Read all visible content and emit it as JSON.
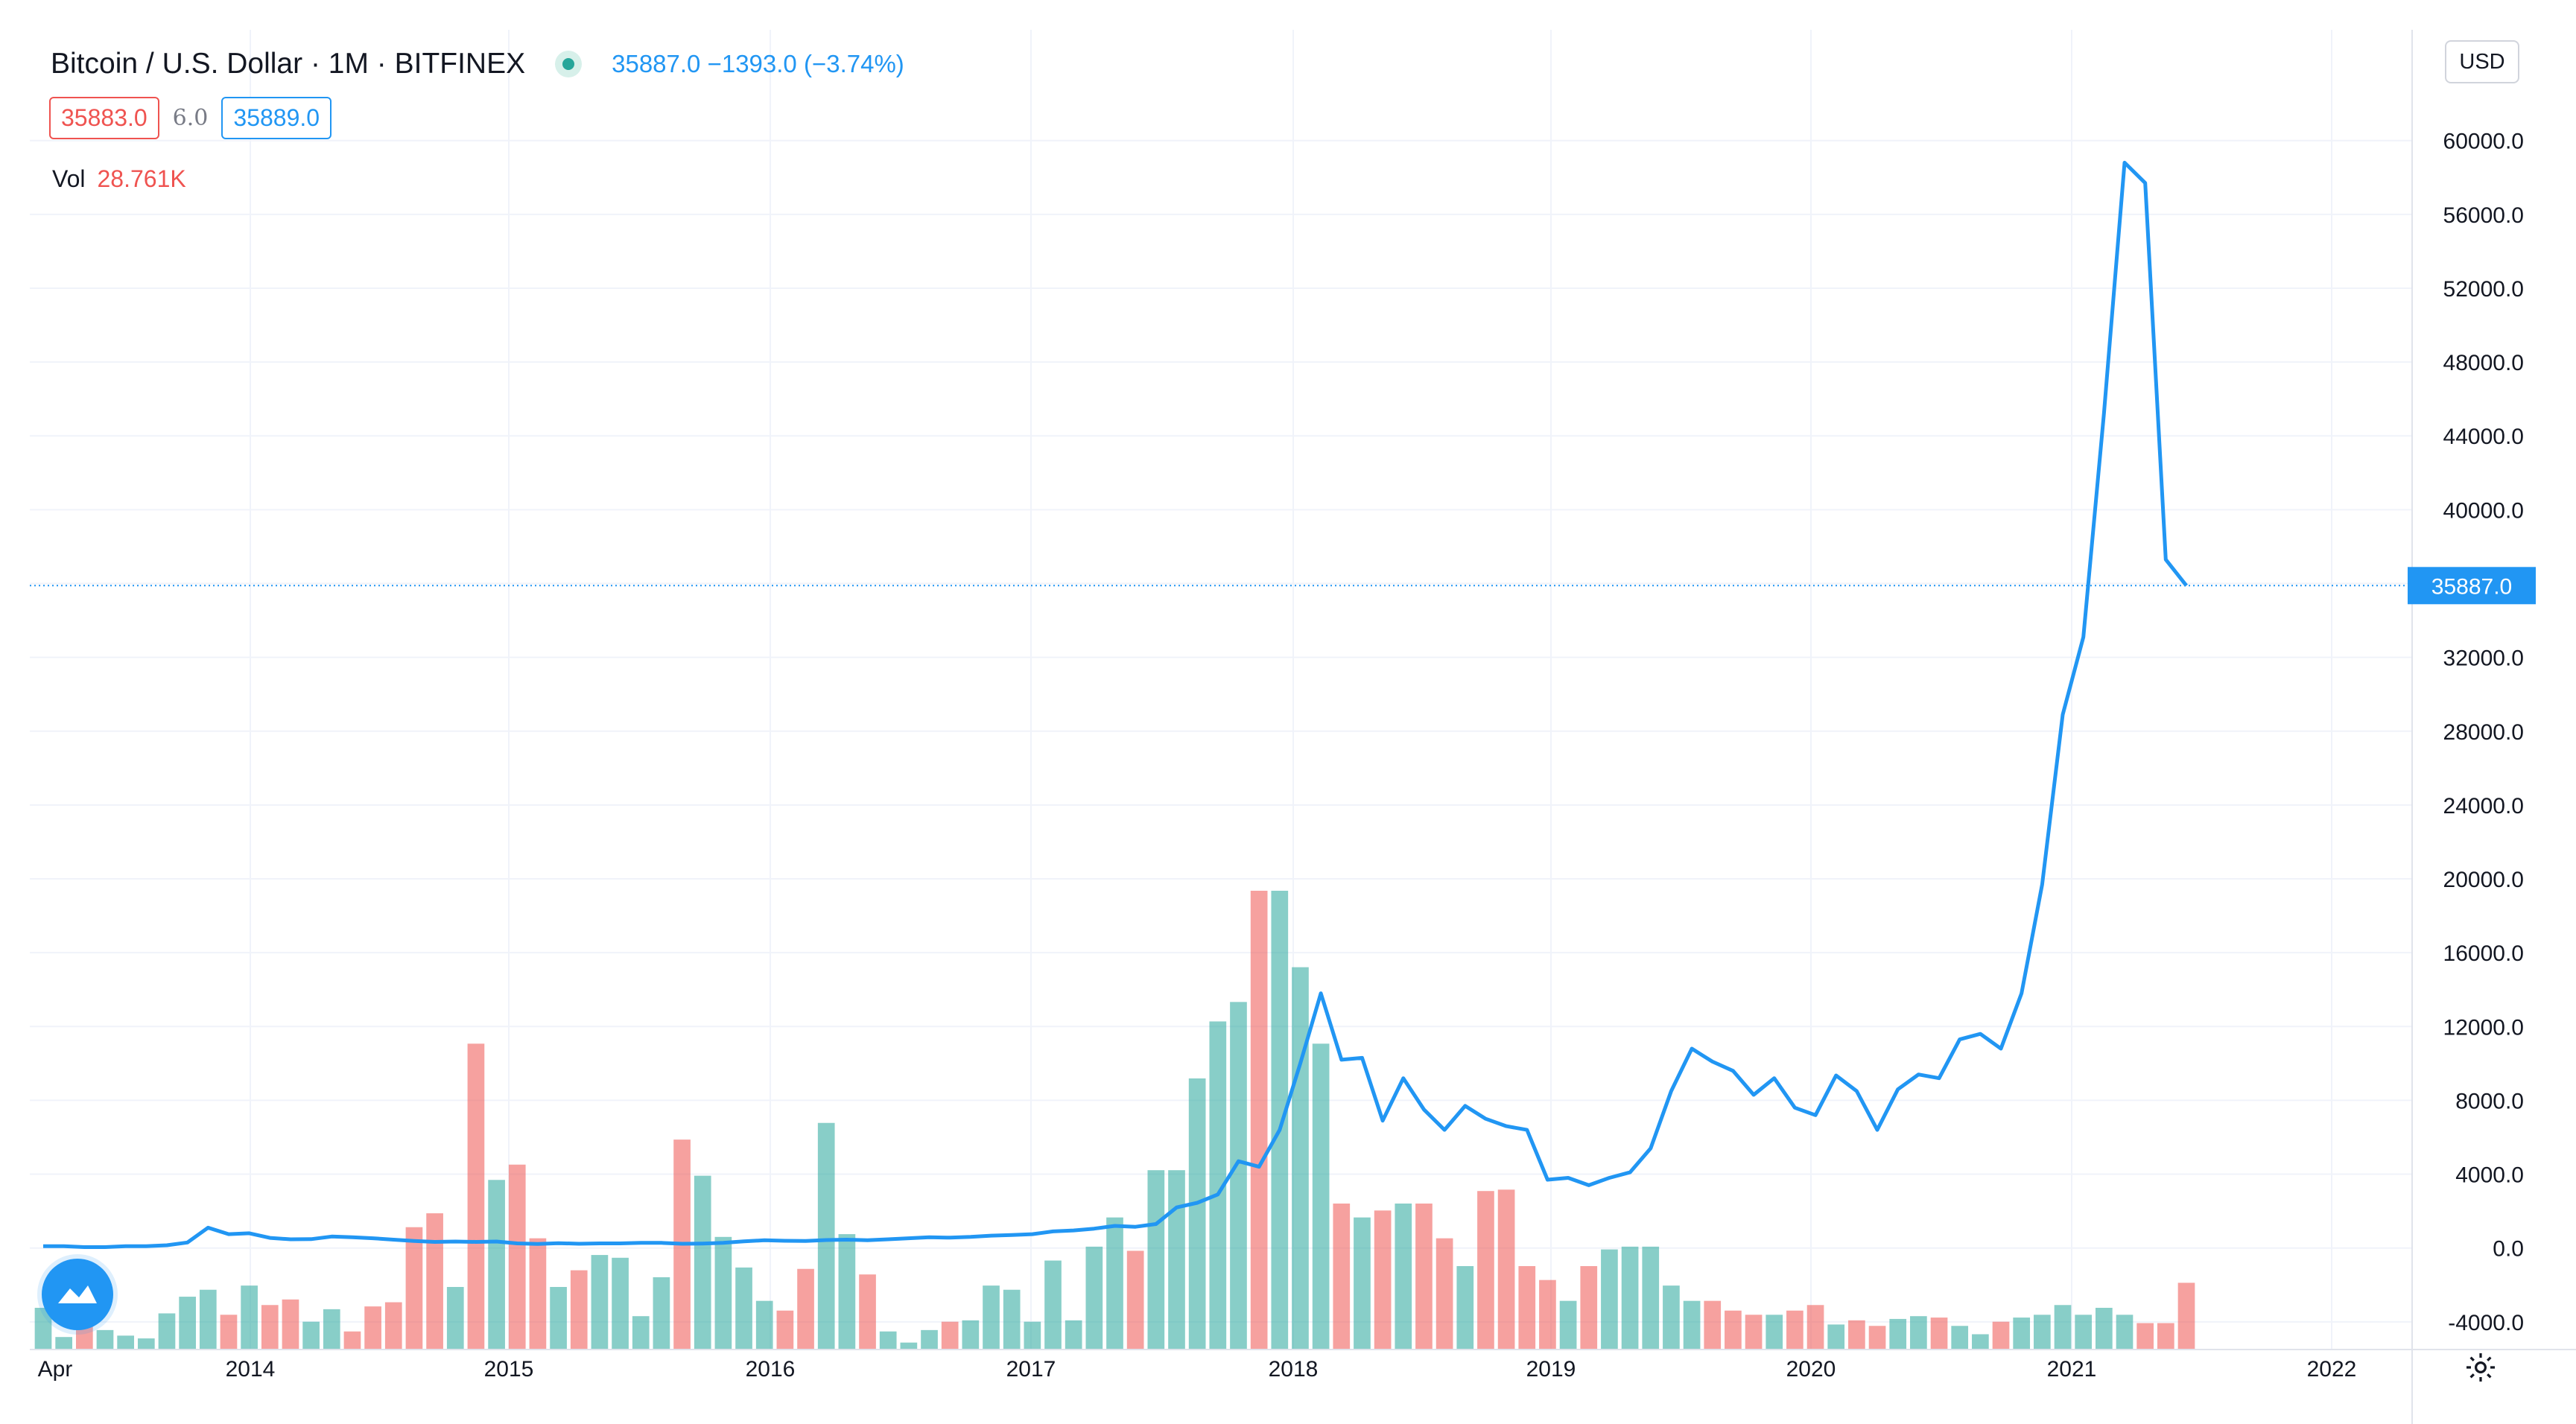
{
  "header": {
    "symbol": "Bitcoin / U.S. Dollar · 1M · BITFINEX",
    "quote": "35887.0  −1393.0 (−3.74%)",
    "bid": "35883.0",
    "spread": "6.0",
    "ask": "35889.0",
    "vol_label": "Vol",
    "vol_value": "28.761K"
  },
  "toolbar": {
    "currency_button": "USD",
    "settings_icon": "gear-icon",
    "logo_icon": "tradingview-logo-icon"
  },
  "colors": {
    "line": "#2196f3",
    "volume_up": "#26a69a",
    "volume_down": "#ef5350",
    "grid": "#f0f3fa",
    "price_badge": "#2196f3"
  },
  "chart_data": {
    "type": "line",
    "x_ticks": [
      "Apr",
      "2014",
      "2015",
      "2016",
      "2017",
      "2018",
      "2019",
      "2020",
      "2021",
      "2022"
    ],
    "y_ticks": [
      "-4000.0",
      "0.0",
      "4000.0",
      "8000.0",
      "12000.0",
      "16000.0",
      "20000.0",
      "24000.0",
      "28000.0",
      "32000.0",
      "36000.0",
      "40000.0",
      "44000.0",
      "48000.0",
      "52000.0",
      "56000.0",
      "60000.0"
    ],
    "ylim": [
      -5500,
      66000
    ],
    "grid": true,
    "last_price": 35887.0,
    "last_price_label": "35887.0",
    "series": [
      {
        "values": [
          100,
          100,
          50,
          50,
          100,
          100,
          150,
          300,
          1100,
          750,
          800,
          550,
          470,
          480,
          620,
          580,
          530,
          450,
          380,
          330,
          350,
          330,
          350,
          250,
          220,
          260,
          230,
          250,
          250,
          280,
          280,
          230,
          240,
          280,
          360,
          420,
          390,
          380,
          430,
          450,
          420,
          470,
          530,
          580,
          560,
          600,
          670,
          700,
          750,
          900,
          950,
          1050,
          1200,
          1150,
          1300,
          2200,
          2450,
          2900,
          4700,
          4400,
          6400,
          10000,
          13800,
          10200,
          10300,
          6900,
          9200,
          7500,
          6400,
          7700,
          7000,
          6600,
          6400,
          3700,
          3800,
          3400,
          3800,
          4100,
          5400,
          8500,
          10800,
          10100,
          9600,
          8300,
          9200,
          7600,
          7200,
          9350,
          8500,
          6400,
          8600,
          9400,
          9200,
          11300,
          11600,
          10800,
          13800,
          19700,
          28900,
          33100,
          45200,
          58800,
          57700,
          37300,
          35887
        ]
      },
      {
        "name": "Vol",
        "values": [
          3.0,
          0.9,
          1.7,
          1.4,
          1.0,
          0.8,
          2.6,
          3.8,
          4.3,
          2.5,
          4.6,
          3.2,
          3.6,
          2.0,
          2.9,
          1.3,
          3.1,
          3.4,
          8.8,
          9.8,
          4.5,
          22.0,
          12.2,
          13.3,
          8.0,
          4.5,
          5.7,
          6.8,
          6.6,
          2.4,
          5.2,
          15.1,
          12.5,
          8.1,
          5.9,
          3.5,
          2.8,
          5.8,
          16.3,
          8.3,
          5.4,
          1.3,
          0.5,
          1.4,
          2.0,
          2.1,
          4.6,
          4.3,
          2.0,
          6.4,
          2.1,
          7.4,
          9.5,
          7.1,
          12.9,
          12.9,
          19.5,
          23.6,
          25.0,
          33.0,
          33.0,
          27.5,
          22.0,
          10.5,
          9.5,
          10.0,
          10.5,
          10.5,
          8.0,
          6.0,
          11.4,
          11.5,
          6.0,
          5.0,
          3.5,
          6.0,
          7.2,
          7.4,
          7.4,
          4.6,
          3.5,
          3.5,
          2.8,
          2.5,
          2.5,
          2.8,
          3.2,
          1.8,
          2.1,
          1.7,
          2.2,
          2.4,
          2.3,
          1.7,
          1.1,
          2.0,
          2.3,
          2.5,
          3.2,
          2.5,
          3.0,
          2.5,
          1.9,
          1.9,
          4.8
        ]
      }
    ]
  }
}
